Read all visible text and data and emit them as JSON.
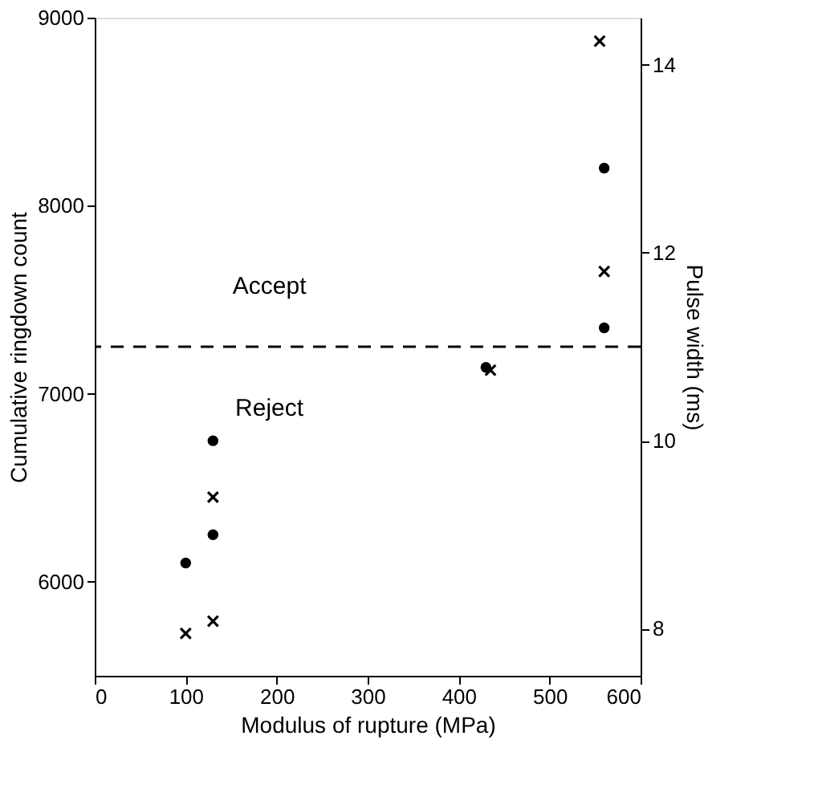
{
  "chart_data": {
    "type": "scatter",
    "xlabel": "Modulus of rupture (MPa)",
    "ylabel": "Cumulative ringdown count",
    "y2label": "Pulse width (ms)",
    "xlim": [
      0,
      600
    ],
    "xticks": [
      0,
      100,
      200,
      300,
      400,
      500,
      600
    ],
    "ylim": [
      5500,
      9000
    ],
    "yticks": [
      6000,
      7000,
      8000,
      9000
    ],
    "y2lim": [
      7.5,
      14.5
    ],
    "y2ticks": [
      8,
      10,
      12,
      14
    ],
    "series": [
      {
        "color": "#000000",
        "marker": "circle",
        "x": [
          100,
          130,
          130,
          430,
          560,
          560
        ],
        "values": [
          6100,
          6250,
          6750,
          7140,
          7350,
          8200
        ]
      },
      {
        "color": "#000000",
        "marker": "cross",
        "axis": "y2",
        "x": [
          100,
          130,
          130,
          435,
          560,
          555
        ],
        "values": [
          7.95,
          8.08,
          9.4,
          10.75,
          11.8,
          14.25
        ]
      }
    ],
    "ref_lines": [
      {
        "axis": "y",
        "value": 7250,
        "line_style": "dashed",
        "color": "#000000"
      }
    ],
    "annotations": [
      "Accept",
      "Reject"
    ],
    "grid": false
  }
}
